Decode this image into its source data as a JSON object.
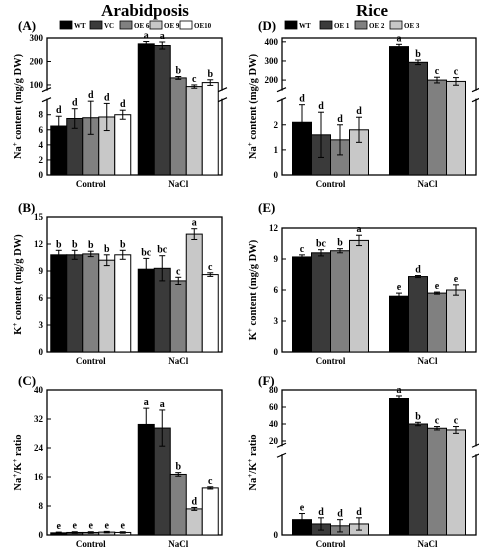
{
  "figure": {
    "left_title": "Arabidposis",
    "right_title": "Rice"
  },
  "chart_data": [
    {
      "panel": "(A)",
      "type": "bar",
      "column": "left",
      "ylabel": "Na+ content (mg/g DW)",
      "categories": [
        "Control",
        "NaCl"
      ],
      "series": [
        {
          "name": "WT",
          "color": "#000000",
          "values": [
            6.5,
            275
          ],
          "errors": [
            1.3,
            10
          ],
          "letters": [
            "d",
            "a"
          ]
        },
        {
          "name": "VC",
          "color": "#3a3a3a",
          "values": [
            7.5,
            268
          ],
          "errors": [
            1.3,
            15
          ],
          "letters": [
            "d",
            "a"
          ]
        },
        {
          "name": "OE 6",
          "color": "#808080",
          "values": [
            7.6,
            130
          ],
          "errors": [
            2.2,
            6
          ],
          "letters": [
            "d",
            "b"
          ]
        },
        {
          "name": "OE 9",
          "color": "#c8c8c8",
          "values": [
            7.7,
            93
          ],
          "errors": [
            1.8,
            7
          ],
          "letters": [
            "d",
            "c"
          ]
        },
        {
          "name": "OE10",
          "color": "#ffffff",
          "values": [
            8.0,
            110
          ],
          "errors": [
            0.6,
            12
          ],
          "letters": [
            "d",
            "b"
          ]
        }
      ],
      "broken_axis": true,
      "lower_range": [
        0,
        10
      ],
      "lower_ticks": [
        0,
        2,
        4,
        6,
        8
      ],
      "upper_range": [
        80,
        300
      ],
      "upper_ticks": [
        100,
        200,
        300
      ]
    },
    {
      "panel": "(B)",
      "type": "bar",
      "column": "left",
      "ylabel": "K+ content (mg/g DW)",
      "categories": [
        "Control",
        "NaCl"
      ],
      "series": [
        {
          "name": "WT",
          "color": "#000000",
          "values": [
            10.8,
            9.2
          ],
          "errors": [
            0.5,
            1.2
          ],
          "letters": [
            "b",
            "bc"
          ]
        },
        {
          "name": "VC",
          "color": "#3a3a3a",
          "values": [
            10.8,
            9.3
          ],
          "errors": [
            0.5,
            1.4
          ],
          "letters": [
            "b",
            "bc"
          ]
        },
        {
          "name": "OE 6",
          "color": "#808080",
          "values": [
            10.9,
            7.9
          ],
          "errors": [
            0.3,
            0.4
          ],
          "letters": [
            "b",
            "c"
          ]
        },
        {
          "name": "OE 9",
          "color": "#c8c8c8",
          "values": [
            10.2,
            13.1
          ],
          "errors": [
            0.6,
            0.6
          ],
          "letters": [
            "b",
            "a"
          ]
        },
        {
          "name": "OE10",
          "color": "#ffffff",
          "values": [
            10.8,
            8.6
          ],
          "errors": [
            0.5,
            0.2
          ],
          "letters": [
            "b",
            "c"
          ]
        }
      ],
      "ylim": [
        0,
        15
      ],
      "yticks": [
        0,
        3,
        6,
        9,
        12,
        15
      ]
    },
    {
      "panel": "(C)",
      "type": "bar",
      "column": "left",
      "ylabel": "Na+/K+ ratio",
      "categories": [
        "Control",
        "NaCl"
      ],
      "series": [
        {
          "name": "WT",
          "color": "#000000",
          "values": [
            0.6,
            30.5
          ],
          "errors": [
            0.2,
            4.5
          ],
          "letters": [
            "e",
            "a"
          ]
        },
        {
          "name": "VC",
          "color": "#3a3a3a",
          "values": [
            0.7,
            29.5
          ],
          "errors": [
            0.2,
            5.0
          ],
          "letters": [
            "e",
            "a"
          ]
        },
        {
          "name": "OE 6",
          "color": "#808080",
          "values": [
            0.7,
            16.7
          ],
          "errors": [
            0.2,
            0.5
          ],
          "letters": [
            "e",
            "b"
          ]
        },
        {
          "name": "OE 9",
          "color": "#c8c8c8",
          "values": [
            0.8,
            7.2
          ],
          "errors": [
            0.2,
            0.4
          ],
          "letters": [
            "e",
            "d"
          ]
        },
        {
          "name": "OE10",
          "color": "#ffffff",
          "values": [
            0.7,
            13.0
          ],
          "errors": [
            0.2,
            0.3
          ],
          "letters": [
            "e",
            "c"
          ]
        }
      ],
      "ylim": [
        0,
        40
      ],
      "yticks": [
        0,
        8,
        16,
        24,
        32,
        40
      ]
    },
    {
      "panel": "(D)",
      "type": "bar",
      "column": "right",
      "ylabel": "Na+ content (mg/g DW)",
      "categories": [
        "Control",
        "NaCl"
      ],
      "series": [
        {
          "name": "WT",
          "color": "#000000",
          "values": [
            2.1,
            375
          ],
          "errors": [
            0.7,
            12
          ],
          "letters": [
            "d",
            "a"
          ]
        },
        {
          "name": "OE 1",
          "color": "#3a3a3a",
          "values": [
            1.6,
            293
          ],
          "errors": [
            0.9,
            12
          ],
          "letters": [
            "d",
            "b"
          ]
        },
        {
          "name": "OE 2",
          "color": "#808080",
          "values": [
            1.4,
            200
          ],
          "errors": [
            0.6,
            15
          ],
          "letters": [
            "d",
            "c"
          ]
        },
        {
          "name": "OE 3",
          "color": "#c8c8c8",
          "values": [
            1.8,
            193
          ],
          "errors": [
            0.5,
            20
          ],
          "letters": [
            "d",
            "c"
          ]
        }
      ],
      "broken_axis": true,
      "lower_range": [
        0,
        3
      ],
      "lower_ticks": [
        0,
        1,
        2
      ],
      "upper_range": [
        150,
        420
      ],
      "upper_ticks": [
        200,
        300,
        400
      ]
    },
    {
      "panel": "(E)",
      "type": "bar",
      "column": "right",
      "ylabel": "K+ content (mg/g DW)",
      "categories": [
        "Control",
        "NaCl"
      ],
      "series": [
        {
          "name": "WT",
          "color": "#000000",
          "values": [
            9.2,
            5.4
          ],
          "errors": [
            0.2,
            0.3
          ],
          "letters": [
            "c",
            "e"
          ]
        },
        {
          "name": "OE 1",
          "color": "#3a3a3a",
          "values": [
            9.6,
            7.3
          ],
          "errors": [
            0.3,
            0.1
          ],
          "letters": [
            "bc",
            "d"
          ]
        },
        {
          "name": "OE 2",
          "color": "#808080",
          "values": [
            9.8,
            5.7
          ],
          "errors": [
            0.2,
            0.1
          ],
          "letters": [
            "b",
            "e"
          ]
        },
        {
          "name": "OE 3",
          "color": "#c8c8c8",
          "values": [
            10.8,
            6.0
          ],
          "errors": [
            0.5,
            0.5
          ],
          "letters": [
            "a",
            "e"
          ]
        }
      ],
      "ylim": [
        0,
        12
      ],
      "yticks": [
        0,
        3,
        6,
        9,
        12
      ]
    },
    {
      "panel": "(F)",
      "type": "bar",
      "column": "right",
      "ylabel": "Na+/K+ ratio",
      "categories": [
        "Control",
        "NaCl"
      ],
      "series": [
        {
          "name": "WT",
          "color": "#000000",
          "values": [
            0.25,
            70
          ],
          "errors": [
            0.1,
            3
          ],
          "letters": [
            "e",
            "a"
          ]
        },
        {
          "name": "OE 1",
          "color": "#3a3a3a",
          "values": [
            0.18,
            40
          ],
          "errors": [
            0.1,
            2
          ],
          "letters": [
            "d",
            "b"
          ]
        },
        {
          "name": "OE 2",
          "color": "#808080",
          "values": [
            0.15,
            35
          ],
          "errors": [
            0.1,
            2
          ],
          "letters": [
            "d",
            "c"
          ]
        },
        {
          "name": "OE 3",
          "color": "#c8c8c8",
          "values": [
            0.18,
            33
          ],
          "errors": [
            0.1,
            4
          ],
          "letters": [
            "d",
            "c"
          ]
        }
      ],
      "broken_axis": true,
      "lower_range": [
        0,
        1.3
      ],
      "lower_ticks": [
        0
      ],
      "upper_range": [
        15,
        80
      ],
      "upper_ticks": [
        20,
        40,
        60,
        80
      ]
    }
  ]
}
